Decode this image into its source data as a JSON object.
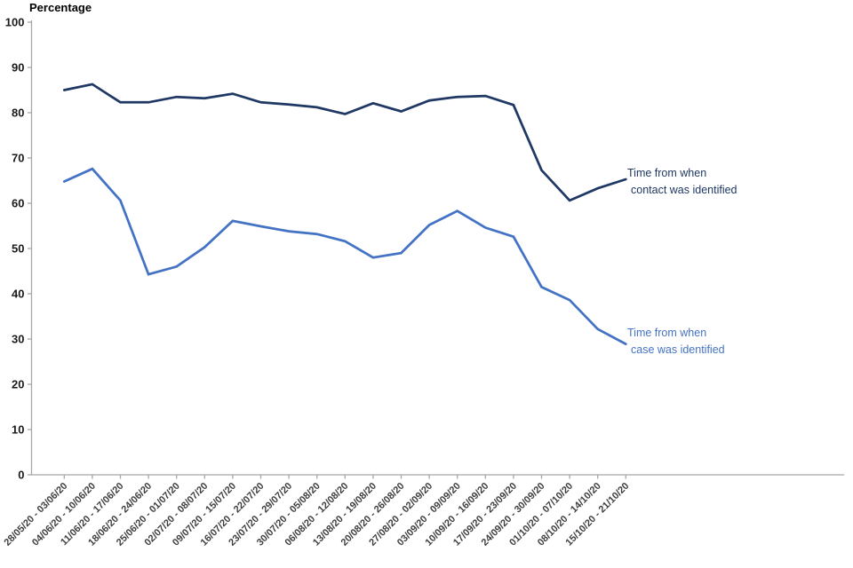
{
  "chart_data": {
    "type": "line",
    "title": "",
    "ylabel": "Percentage",
    "xlabel": "",
    "ylim": [
      0,
      100
    ],
    "ytick_step": 10,
    "grid": false,
    "legend_position": "inline-annotations-right-of-line-ends",
    "categories": [
      "28/05/20 - 03/06/20",
      "04/06/20 - 10/06/20",
      "11/06/20 - 17/06/20",
      "18/06/20 - 24/06/20",
      "25/06/20 - 01/07/20",
      "02/07/20 - 08/07/20",
      "09/07/20 - 15/07/20",
      "16/07/20 - 22/07/20",
      "23/07/20 - 29/07/20",
      "30/07/20 - 05/08/20",
      "06/08/20 - 12/08/20",
      "13/08/20 - 19/08/20",
      "20/08/20 - 26/08/20",
      "27/08/20 - 02/09/20",
      "03/09/20 - 09/09/20",
      "10/09/20 - 16/09/20",
      "17/09/20 - 23/09/20",
      "24/09/20 - 30/09/20",
      "01/10/20 - 07/10/20",
      "08/10/20 - 14/10/20",
      "15/10/20 - 21/10/20"
    ],
    "series": [
      {
        "name": "Time from when contact was identified",
        "label_lines": [
          "Time from when",
          "contact was identified"
        ],
        "color": "#1f3864",
        "values": [
          85.0,
          86.3,
          82.3,
          82.3,
          83.5,
          83.2,
          84.2,
          82.3,
          81.8,
          81.2,
          79.7,
          82.1,
          80.3,
          82.7,
          83.5,
          83.7,
          81.7,
          67.3,
          60.6,
          63.3,
          65.3
        ]
      },
      {
        "name": "Time from when case was identified",
        "label_lines": [
          "Time from when",
          "case was identified"
        ],
        "color": "#4472c4",
        "values": [
          64.8,
          67.6,
          60.6,
          44.3,
          46.0,
          50.3,
          56.1,
          54.9,
          53.8,
          53.2,
          51.6,
          48.0,
          49.0,
          55.2,
          58.3,
          54.6,
          52.6,
          41.5,
          38.6,
          32.2,
          28.9
        ]
      }
    ]
  },
  "axis": {
    "line_color": "#a6a6a6",
    "tick_color": "#a6a6a6",
    "y_tick_labels": [
      "0",
      "10",
      "20",
      "30",
      "40",
      "50",
      "60",
      "70",
      "80",
      "90",
      "100"
    ]
  }
}
